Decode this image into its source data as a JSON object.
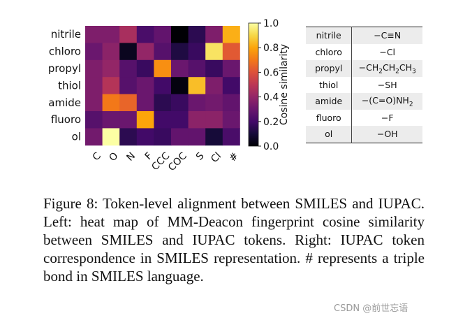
{
  "chart_data": {
    "type": "heatmap",
    "x": [
      "C",
      "O",
      "N",
      "F",
      "CCC",
      "COC",
      "S",
      "Cl",
      "#"
    ],
    "y": [
      "nitrile",
      "chloro",
      "propyl",
      "thiol",
      "amide",
      "fluoro",
      "ol"
    ],
    "values": [
      [
        0.35,
        0.35,
        0.45,
        0.22,
        0.28,
        0.0,
        0.15,
        0.35,
        0.82
      ],
      [
        0.3,
        0.38,
        0.05,
        0.4,
        0.25,
        0.12,
        0.18,
        0.93,
        0.62
      ],
      [
        0.35,
        0.4,
        0.25,
        0.18,
        0.75,
        0.3,
        0.25,
        0.18,
        0.3
      ],
      [
        0.35,
        0.48,
        0.25,
        0.3,
        0.2,
        0.02,
        0.85,
        0.35,
        0.2
      ],
      [
        0.35,
        0.7,
        0.65,
        0.3,
        0.15,
        0.18,
        0.3,
        0.32,
        0.28
      ],
      [
        0.25,
        0.3,
        0.3,
        0.8,
        0.2,
        0.2,
        0.38,
        0.38,
        0.3
      ],
      [
        0.32,
        1.0,
        0.15,
        0.2,
        0.18,
        0.28,
        0.28,
        0.1,
        0.22
      ]
    ],
    "colorbar": {
      "label": "Cosine similarity",
      "ticks": [
        "0.0",
        "0.2",
        "0.4",
        "0.6",
        "0.8",
        "1.0"
      ],
      "range": [
        0,
        1
      ],
      "colormap": "inferno"
    }
  },
  "table": {
    "rows": [
      {
        "token": "nitrile",
        "smiles": "−C≡N"
      },
      {
        "token": "chloro",
        "smiles": "−Cl"
      },
      {
        "token": "propyl",
        "smiles": "−CH2CH2CH3"
      },
      {
        "token": "thiol",
        "smiles": "−SH"
      },
      {
        "token": "amide",
        "smiles": "−(C=O)NH2"
      },
      {
        "token": "fluoro",
        "smiles": "−F"
      },
      {
        "token": "ol",
        "smiles": "−OH"
      }
    ]
  },
  "caption": "Figure 8: Token-level alignment between SMILES and IUPAC. Left: heat map of MM-Deacon fingerprint cosine similarity between SMILES and IUPAC tokens. Right: IUPAC token correspondence in SMILES representation. # represents a triple bond in SMILES language.",
  "watermark": "CSDN @前世忘语"
}
